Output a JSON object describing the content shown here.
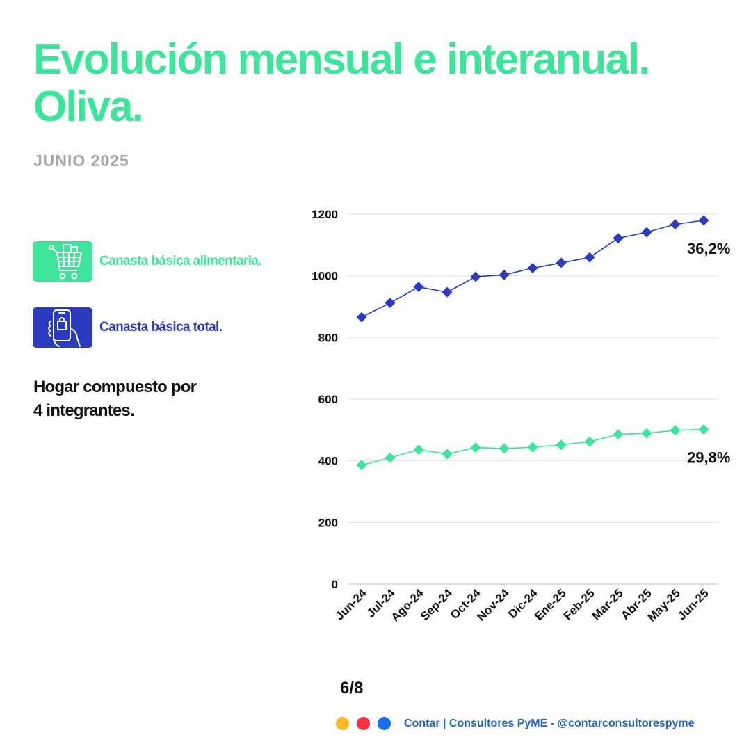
{
  "header": {
    "title_line1": "Evolución mensual e interanual.",
    "title_line2": "Oliva.",
    "subtitle": "JUNIO 2025"
  },
  "legend": [
    {
      "label": "Canasta básica alimentaria.",
      "icon": "shopping-cart-icon",
      "color": "#3ee39c"
    },
    {
      "label": "Canasta básica total.",
      "icon": "phone-shopping-bag-icon",
      "color": "#2b3bbd"
    }
  ],
  "note": {
    "line1": "Hogar compuesto por",
    "line2": "4 integrantes."
  },
  "chart_data": {
    "type": "line",
    "categories": [
      "Jun-24",
      "Jul-24",
      "Ago-24",
      "Sep-24",
      "Oct-24",
      "Nov-24",
      "Dic-24",
      "Ene-25",
      "Feb-25",
      "Mar-25",
      "Abr-25",
      "May-25",
      "Jun-25"
    ],
    "series": [
      {
        "key": "cbt",
        "color": "#2b3bbd",
        "marker": "diamond",
        "values": [
          866,
          912,
          964,
          947,
          997,
          1003,
          1025,
          1042,
          1060,
          1122,
          1141,
          1167,
          1180
        ],
        "end_label": "36,2%"
      },
      {
        "key": "cba",
        "color": "#3ee39c",
        "marker": "diamond",
        "values": [
          386,
          410,
          436,
          422,
          443,
          440,
          444,
          452,
          462,
          486,
          489,
          499,
          502
        ],
        "end_label": "29,8%"
      }
    ],
    "y_ticks": [
      0,
      200,
      400,
      600,
      800,
      1000,
      1200
    ],
    "ylim": [
      0,
      1200
    ],
    "grid": true
  },
  "footer": {
    "page": "6/8",
    "text": "Contar | Consultores PyME - @contarconsultorespyme",
    "dots": [
      "#fbb829",
      "#f5333f",
      "#1a6be8"
    ]
  }
}
